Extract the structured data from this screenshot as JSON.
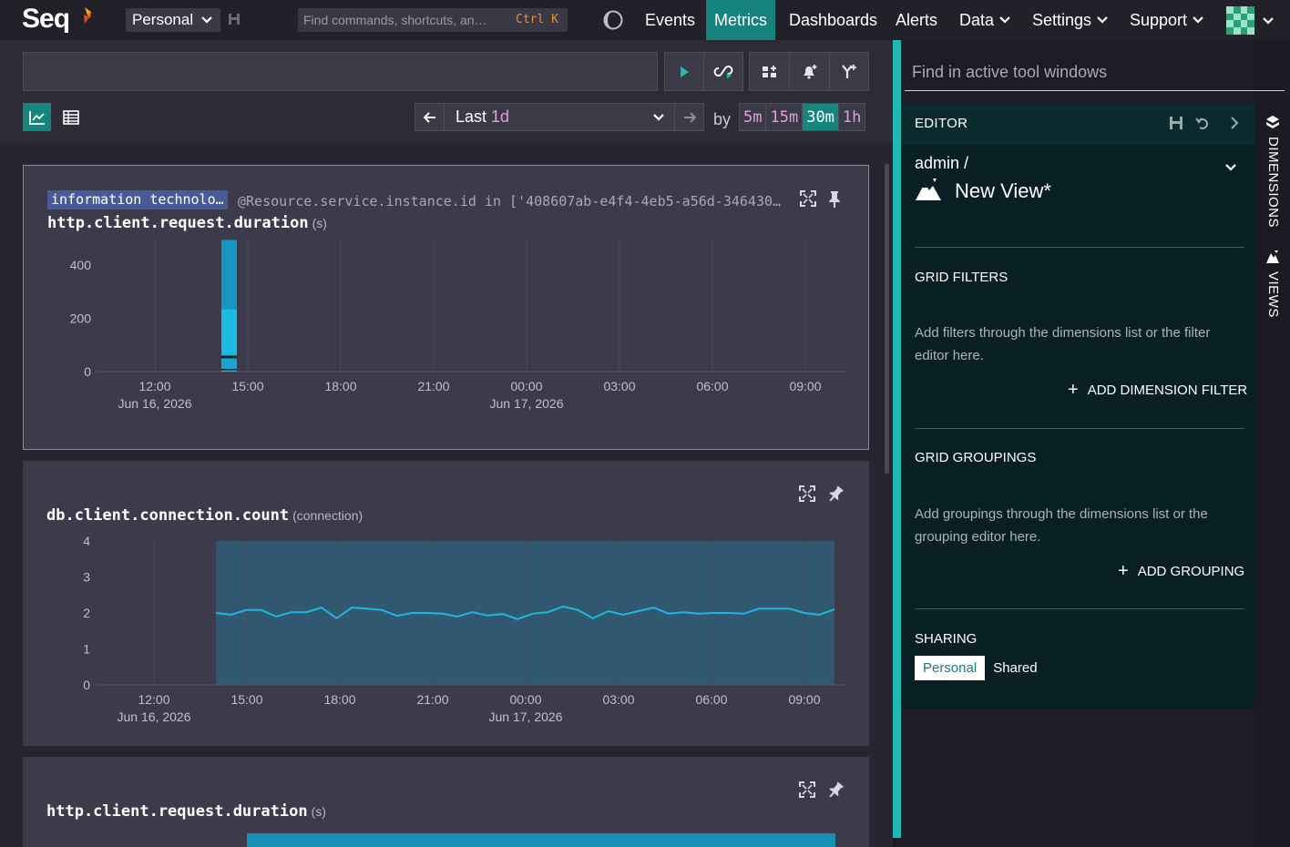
{
  "app": {
    "name": "Seq"
  },
  "topnav": {
    "workspace": "Personal",
    "command_placeholder": "Find commands, shortcuts, an…",
    "command_shortcut": "Ctrl K",
    "links": [
      "Events",
      "Metrics",
      "Dashboards",
      "Alerts",
      "Data",
      "Settings",
      "Support"
    ],
    "active": "Metrics"
  },
  "toolbar": {
    "query_value": "",
    "range_prefix": "Last",
    "range_value": "1d",
    "by_label": "by",
    "intervals": [
      "5m",
      "15m",
      "30m",
      "1h"
    ],
    "active_interval": "30m"
  },
  "cards": [
    {
      "filter_tag": "information technolo…",
      "filter_text": "@Resource.service.instance.id in ['408607ab-e4f4-4eb5-a56d-346430…",
      "metric": "http.client.request.duration",
      "unit": "(s)"
    },
    {
      "metric": "db.client.connection.count",
      "unit": "(connection)"
    },
    {
      "metric": "http.client.request.duration",
      "unit": "(s)"
    }
  ],
  "chart_data": [
    {
      "type": "bar",
      "title": "http.client.request.duration (s)",
      "x_ticks": [
        "12:00",
        "15:00",
        "18:00",
        "21:00",
        "00:00",
        "03:00",
        "06:00",
        "09:00"
      ],
      "x_dates": {
        "12:00": "Jun 16, 2026",
        "00:00": "Jun 17, 2026"
      },
      "y_ticks": [
        0,
        200,
        400
      ],
      "ylim": [
        0,
        500
      ],
      "bars": [
        {
          "x": "14:30",
          "segments": [
            5,
            5,
            40,
            10,
            175,
            260
          ]
        }
      ]
    },
    {
      "type": "area",
      "title": "db.client.connection.count (connection)",
      "x_ticks": [
        "12:00",
        "15:00",
        "18:00",
        "21:00",
        "00:00",
        "03:00",
        "06:00",
        "09:00"
      ],
      "x_dates": {
        "12:00": "Jun 16, 2026",
        "00:00": "Jun 17, 2026"
      },
      "y_ticks": [
        0,
        1,
        2,
        3,
        4
      ],
      "ylim": [
        0,
        4
      ],
      "series": [
        {
          "values": [
            2.0,
            1.95,
            2.08,
            2.08,
            1.9,
            2.02,
            2.02,
            2.15,
            1.85,
            2.15,
            2.12,
            2.08,
            1.92,
            2.0,
            2.0,
            1.98,
            1.9,
            2.02,
            1.93,
            1.97,
            1.83,
            1.98,
            2.02,
            2.18,
            2.08,
            1.85,
            2.05,
            1.95,
            2.05,
            2.15,
            1.98,
            2.02,
            1.98,
            2.0,
            2.0,
            1.98,
            2.12,
            2.12,
            2.12,
            2.0,
            1.95,
            2.1
          ]
        }
      ]
    }
  ],
  "right": {
    "find_placeholder": "Find in active tool windows",
    "editor_title": "EDITOR",
    "owner": "admin /",
    "view_name": "New View*",
    "filters_title": "GRID FILTERS",
    "filters_hint": "Add filters through the dimensions list or the filter editor here.",
    "add_filter": "ADD DIMENSION FILTER",
    "groupings_title": "GRID GROUPINGS",
    "groupings_hint": "Add groupings through the dimensions list or the grouping editor here.",
    "add_grouping": "ADD GROUPING",
    "sharing_title": "SHARING",
    "sharing_personal": "Personal",
    "sharing_shared": "Shared"
  },
  "sidetabs": [
    "DIMENSIONS",
    "VIEWS"
  ],
  "colors": {
    "accent": "#1fbbb3",
    "series": "#1db8e0",
    "filter_tag": "#485b97"
  }
}
